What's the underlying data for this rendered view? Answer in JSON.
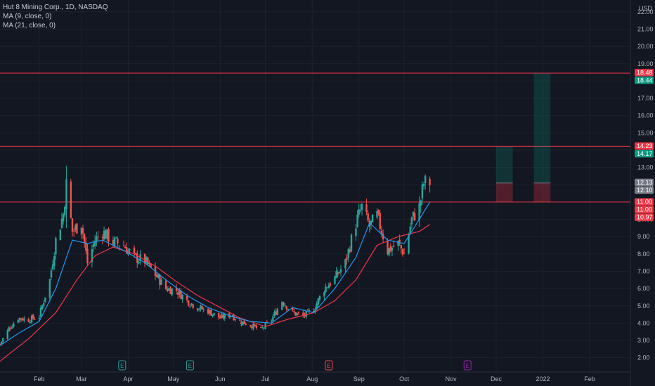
{
  "legend": {
    "symbol": "Hut 8 Mining Corp., 1D, NASDAQ",
    "ma9": "MA (9, close, 0)",
    "ma21": "MA (21, close, 0)"
  },
  "currency": "USD",
  "colors": {
    "background": "#131722",
    "up": "#26a69a",
    "down": "#ef5350",
    "ma9": "#2196f3",
    "ma21": "#f23645",
    "hline": "#f23645"
  },
  "chart_data": {
    "type": "candlestick",
    "title": "Hut 8 Mining Corp., 1D, NASDAQ",
    "ylim": [
      1.5,
      22.4
    ],
    "y_ticks": [
      2,
      3,
      4,
      5,
      6,
      7,
      8,
      9,
      10,
      11,
      12,
      13,
      14,
      15,
      16,
      17,
      18,
      19,
      20,
      21,
      22
    ],
    "x_ticks": [
      "Feb",
      "Mar",
      "Apr",
      "May",
      "Jun",
      "Jul",
      "Aug",
      "Sep",
      "Oct",
      "Nov",
      "Dec",
      "2022",
      "Feb"
    ],
    "x_tick_dates": [
      "2021-02-01",
      "2021-03-01",
      "2021-04-01",
      "2021-05-01",
      "2021-06-01",
      "2021-07-01",
      "2021-08-01",
      "2021-09-01",
      "2021-10-01",
      "2021-11-01",
      "2021-12-01",
      "2022-01-01",
      "2022-02-01"
    ],
    "x_start": "2021-01-06",
    "x_end": "2022-02-28",
    "close_points": [
      [
        "2021-01-06",
        2.8
      ],
      [
        "2021-01-12",
        3.7
      ],
      [
        "2021-01-18",
        4.3
      ],
      [
        "2021-01-25",
        4.2
      ],
      [
        "2021-02-01",
        4.4
      ],
      [
        "2021-02-08",
        6.5
      ],
      [
        "2021-02-12",
        8.8
      ],
      [
        "2021-02-17",
        10.3
      ],
      [
        "2021-02-19",
        12.0
      ],
      [
        "2021-02-23",
        9.3
      ],
      [
        "2021-03-01",
        9.8
      ],
      [
        "2021-03-05",
        7.5
      ],
      [
        "2021-03-10",
        8.8
      ],
      [
        "2021-03-15",
        9.3
      ],
      [
        "2021-03-22",
        8.7
      ],
      [
        "2021-03-29",
        8.5
      ],
      [
        "2021-04-05",
        7.8
      ],
      [
        "2021-04-12",
        7.6
      ],
      [
        "2021-04-19",
        6.8
      ],
      [
        "2021-04-26",
        6.0
      ],
      [
        "2021-05-03",
        5.9
      ],
      [
        "2021-05-10",
        5.3
      ],
      [
        "2021-05-17",
        4.9
      ],
      [
        "2021-05-24",
        4.7
      ],
      [
        "2021-06-01",
        4.3
      ],
      [
        "2021-06-08",
        4.5
      ],
      [
        "2021-06-14",
        4.1
      ],
      [
        "2021-06-21",
        3.9
      ],
      [
        "2021-06-28",
        3.6
      ],
      [
        "2021-07-05",
        4.2
      ],
      [
        "2021-07-12",
        5.3
      ],
      [
        "2021-07-19",
        4.6
      ],
      [
        "2021-07-26",
        4.4
      ],
      [
        "2021-08-02",
        4.8
      ],
      [
        "2021-08-09",
        6.0
      ],
      [
        "2021-08-16",
        6.6
      ],
      [
        "2021-08-23",
        7.5
      ],
      [
        "2021-08-30",
        9.8
      ],
      [
        "2021-09-03",
        10.7
      ],
      [
        "2021-09-08",
        9.6
      ],
      [
        "2021-09-13",
        10.2
      ],
      [
        "2021-09-20",
        8.2
      ],
      [
        "2021-09-27",
        8.6
      ],
      [
        "2021-10-01",
        8.0
      ],
      [
        "2021-10-06",
        10.0
      ],
      [
        "2021-10-11",
        10.7
      ],
      [
        "2021-10-14",
        12.1
      ],
      [
        "2021-10-18",
        12.13
      ]
    ],
    "ma9_points": [
      [
        "2021-01-06",
        2.7
      ],
      [
        "2021-01-18",
        3.4
      ],
      [
        "2021-02-01",
        4.1
      ],
      [
        "2021-02-12",
        6.0
      ],
      [
        "2021-02-23",
        8.8
      ],
      [
        "2021-03-05",
        8.6
      ],
      [
        "2021-03-15",
        8.8
      ],
      [
        "2021-03-29",
        8.2
      ],
      [
        "2021-04-12",
        7.5
      ],
      [
        "2021-04-26",
        6.5
      ],
      [
        "2021-05-10",
        5.6
      ],
      [
        "2021-05-24",
        4.9
      ],
      [
        "2021-06-08",
        4.4
      ],
      [
        "2021-06-21",
        4.1
      ],
      [
        "2021-07-05",
        4.0
      ],
      [
        "2021-07-19",
        4.9
      ],
      [
        "2021-08-02",
        4.6
      ],
      [
        "2021-08-16",
        6.0
      ],
      [
        "2021-08-30",
        7.8
      ],
      [
        "2021-09-08",
        9.8
      ],
      [
        "2021-09-20",
        8.8
      ],
      [
        "2021-10-01",
        8.6
      ],
      [
        "2021-10-11",
        10.0
      ],
      [
        "2021-10-18",
        11.0
      ]
    ],
    "ma21_points": [
      [
        "2021-01-06",
        1.8
      ],
      [
        "2021-01-25",
        3.1
      ],
      [
        "2021-02-12",
        4.6
      ],
      [
        "2021-02-26",
        6.5
      ],
      [
        "2021-03-10",
        7.9
      ],
      [
        "2021-03-22",
        8.4
      ],
      [
        "2021-04-05",
        8.0
      ],
      [
        "2021-04-19",
        7.3
      ],
      [
        "2021-05-03",
        6.4
      ],
      [
        "2021-05-17",
        5.6
      ],
      [
        "2021-06-01",
        4.9
      ],
      [
        "2021-06-14",
        4.3
      ],
      [
        "2021-07-01",
        3.8
      ],
      [
        "2021-07-15",
        4.2
      ],
      [
        "2021-08-02",
        4.6
      ],
      [
        "2021-08-16",
        5.3
      ],
      [
        "2021-08-30",
        6.5
      ],
      [
        "2021-09-13",
        8.5
      ],
      [
        "2021-09-27",
        9.0
      ],
      [
        "2021-10-11",
        9.3
      ],
      [
        "2021-10-18",
        9.7
      ]
    ],
    "horizontal_lines": [
      18.46,
      14.23,
      11.0
    ],
    "position_boxes": [
      {
        "start": "2021-12-01",
        "end": "2021-12-12",
        "entry": 12.1,
        "target": 14.2,
        "stop": 11.0
      },
      {
        "start": "2021-12-26",
        "end": "2022-01-06",
        "entry": 12.1,
        "target": 18.46,
        "stop": 11.0
      }
    ],
    "price_labels": [
      {
        "text": "18.48",
        "value": 18.48,
        "bg": "#f23645"
      },
      {
        "text": "18.44",
        "value": 18.44,
        "bg": "#089981"
      },
      {
        "text": "14.23",
        "value": 14.23,
        "bg": "#f23645"
      },
      {
        "text": "14.17",
        "value": 14.17,
        "bg": "#089981"
      },
      {
        "text": "12.13",
        "value": 12.13,
        "bg": "#787b86"
      },
      {
        "text": "12.10",
        "value": 12.1,
        "bg": "#787b86"
      },
      {
        "text": "11.00",
        "value": 11.0,
        "bg": "#f23645"
      },
      {
        "text": "11.00",
        "value": 11.0,
        "bg": "#f23645"
      },
      {
        "text": "10.97",
        "value": 10.97,
        "bg": "#f23645"
      }
    ],
    "events": [
      {
        "date": "2021-03-28",
        "label": "E",
        "color": "#26a69a"
      },
      {
        "date": "2021-05-12",
        "label": "E",
        "color": "#26a69a"
      },
      {
        "date": "2021-08-12",
        "label": "E",
        "color": "#ef5350"
      },
      {
        "date": "2021-11-12",
        "label": "E",
        "color": "#9c27b0"
      }
    ]
  }
}
